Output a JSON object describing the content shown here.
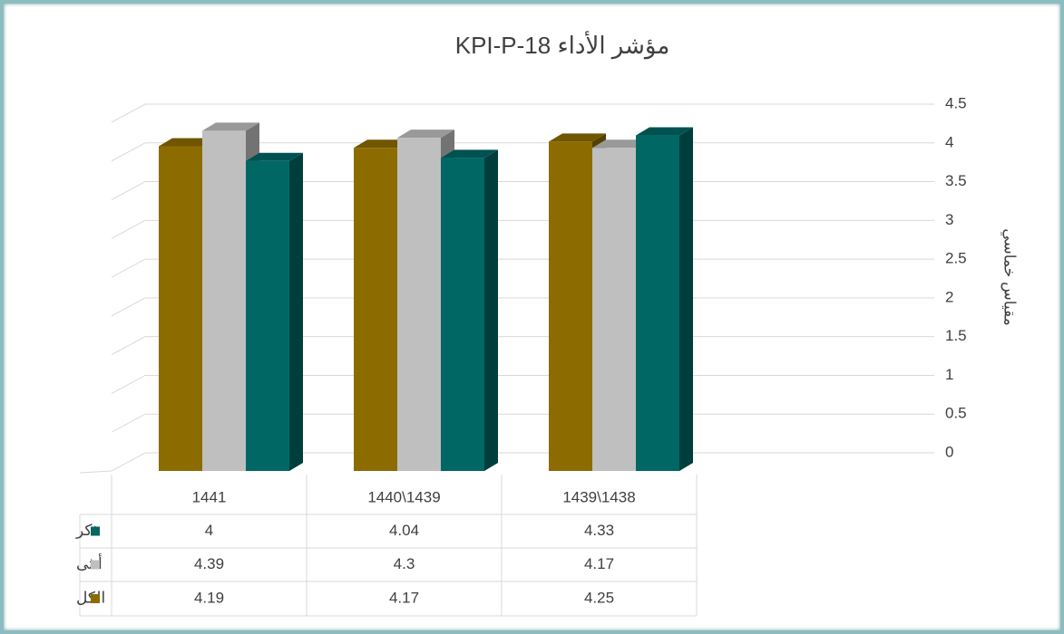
{
  "chart_data": {
    "type": "bar3d",
    "title": "مؤشر الأداء KPI-P-18",
    "y_label": "مقياس خماسي",
    "categories": [
      "1441",
      "1440\\1439",
      "1439\\1438"
    ],
    "series": [
      {
        "name": "ذكر",
        "color": "#006765",
        "values": [
          4,
          4.04,
          4.33
        ]
      },
      {
        "name": "أنثى",
        "color": "#bfbfbf",
        "values": [
          4.39,
          4.3,
          4.17
        ]
      },
      {
        "name": "الكل",
        "color": "#8c6c00",
        "values": [
          4.19,
          4.17,
          4.25
        ]
      }
    ],
    "ylim": [
      0,
      4.5
    ],
    "yticks": [
      0,
      0.5,
      1,
      1.5,
      2,
      2.5,
      3,
      3.5,
      4,
      4.5
    ],
    "grid": true,
    "data_table": true
  }
}
